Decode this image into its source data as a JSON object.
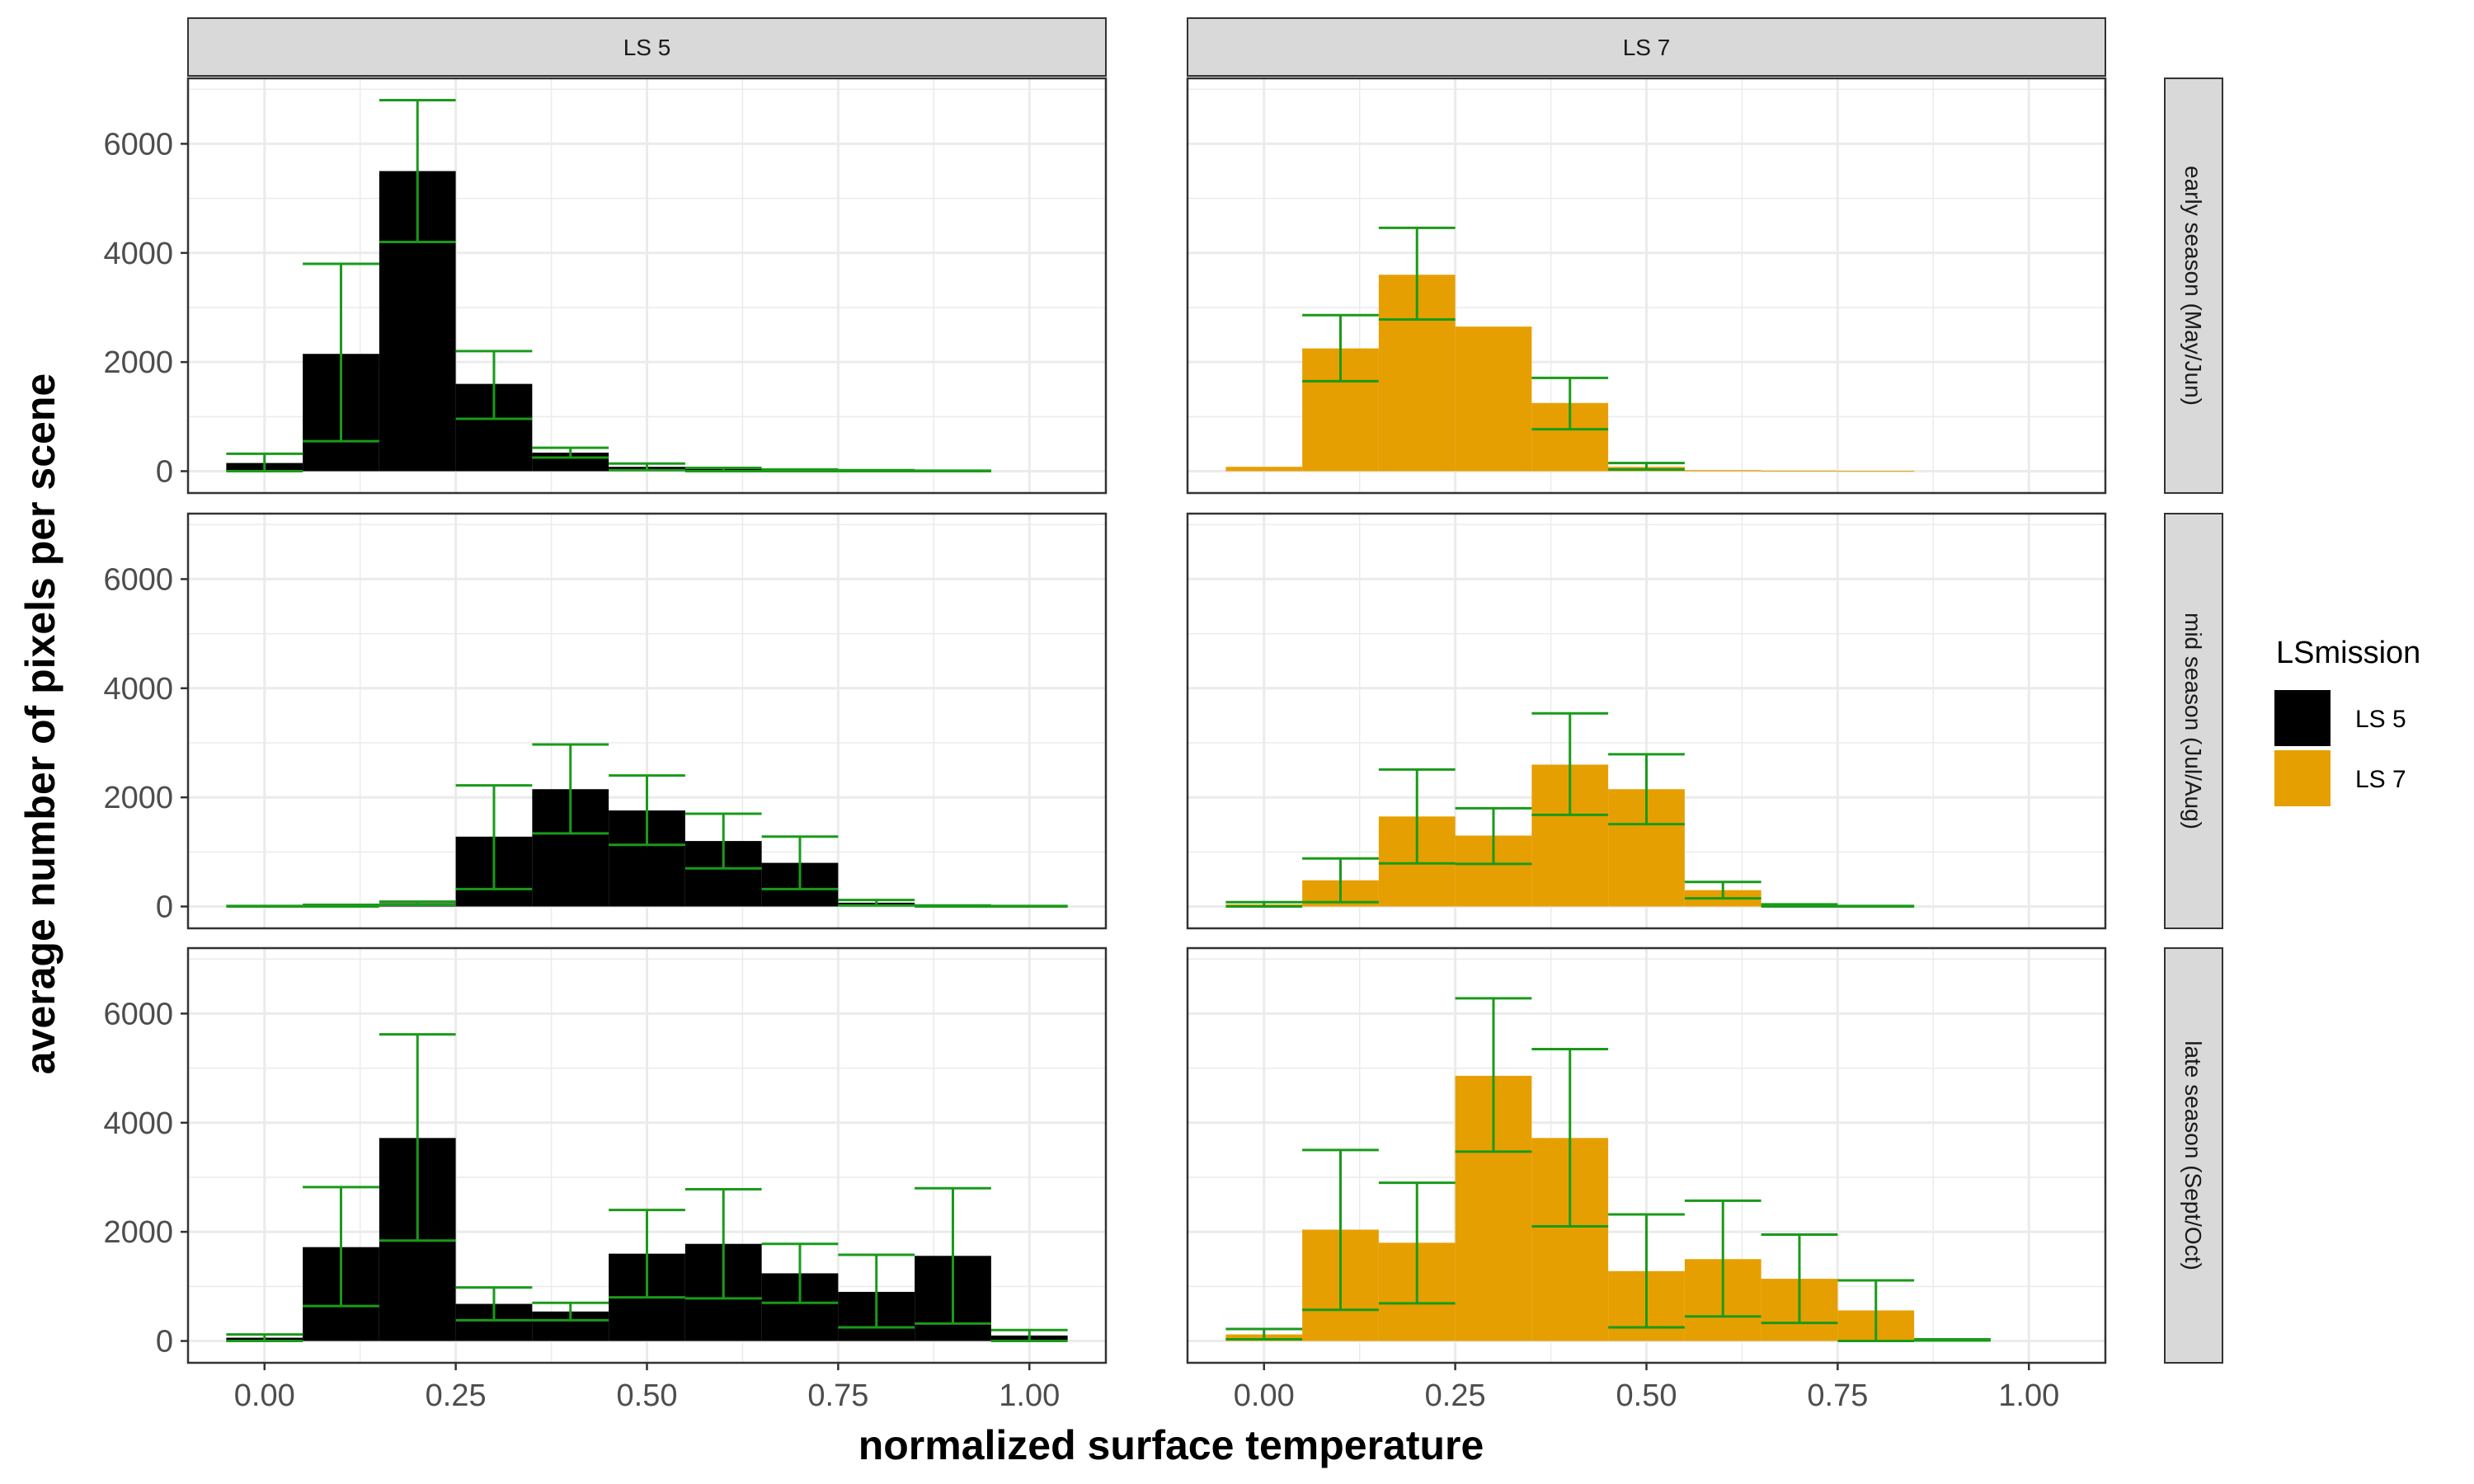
{
  "chart_data": {
    "type": "bar",
    "title": "",
    "xlabel": "normalized surface temperature",
    "ylabel": "average number of pixels per scene",
    "xlim": [
      -0.1,
      1.1
    ],
    "ylim": [
      -400,
      7200
    ],
    "x_ticks": [
      "0.00",
      "0.25",
      "0.50",
      "0.75",
      "1.00"
    ],
    "x_tick_values": [
      0,
      0.25,
      0.5,
      0.75,
      1.0
    ],
    "y_ticks": [
      "0",
      "2000",
      "4000",
      "6000"
    ],
    "y_tick_values": [
      0,
      2000,
      4000,
      6000
    ],
    "bin_width": 0.1,
    "grid": true,
    "legend": {
      "title": "LSmission",
      "position": "right",
      "items": [
        {
          "label": "LS 5",
          "color": "#000000"
        },
        {
          "label": "LS 7",
          "color": "#E69F00"
        }
      ]
    },
    "colors": {
      "LS 5": "#000000",
      "LS 7": "#E69F00",
      "errorbar": "#1a9a1a",
      "strip": "#d9d9d9",
      "grid": "#ebebeb"
    },
    "columns": [
      "LS 5",
      "LS 7"
    ],
    "rows": [
      "early season (May/Jun)",
      "mid season (Jul/Aug)",
      "late season (Sept/Oct)"
    ],
    "x": [
      0.0,
      0.1,
      0.2,
      0.3,
      0.4,
      0.5,
      0.6,
      0.7,
      0.8,
      0.9,
      1.0
    ],
    "panels": [
      {
        "column": "LS 5",
        "row": "early season (May/Jun)",
        "values": [
          150,
          2150,
          5500,
          1600,
          340,
          80,
          40,
          20,
          10,
          5,
          null
        ],
        "error_low": [
          0,
          550,
          4200,
          960,
          250,
          20,
          0,
          0,
          0,
          0,
          null
        ],
        "error_high": [
          320,
          3800,
          6800,
          2200,
          430,
          140,
          60,
          30,
          20,
          10,
          null
        ]
      },
      {
        "column": "LS 7",
        "row": "early season (May/Jun)",
        "values": [
          80,
          2250,
          3600,
          2650,
          1250,
          80,
          20,
          10,
          5,
          null,
          null
        ],
        "error_low": [
          null,
          1650,
          2780,
          null,
          770,
          30,
          null,
          null,
          null,
          null,
          null
        ],
        "error_high": [
          null,
          2860,
          4460,
          null,
          1710,
          150,
          null,
          null,
          null,
          null,
          null
        ]
      },
      {
        "column": "LS 5",
        "row": "mid season (Jul/Aug)",
        "values": [
          5,
          15,
          60,
          1280,
          2150,
          1760,
          1200,
          800,
          70,
          10,
          5
        ],
        "error_low": [
          0,
          0,
          30,
          320,
          1340,
          1130,
          700,
          320,
          20,
          0,
          0
        ],
        "error_high": [
          10,
          30,
          90,
          2220,
          2970,
          2400,
          1700,
          1280,
          120,
          20,
          10
        ],
        "show_bar": [
          false,
          false,
          true,
          true,
          true,
          true,
          true,
          true,
          true,
          false,
          false
        ]
      },
      {
        "column": "LS 7",
        "row": "mid season (Jul/Aug)",
        "values": [
          40,
          480,
          1650,
          1300,
          2600,
          2150,
          300,
          20,
          5,
          null,
          null
        ],
        "error_low": [
          0,
          80,
          790,
          780,
          1680,
          1510,
          150,
          0,
          0,
          null,
          null
        ],
        "error_high": [
          80,
          880,
          2510,
          1800,
          3540,
          2790,
          450,
          40,
          10,
          null,
          null
        ]
      },
      {
        "column": "LS 5",
        "row": "late season (Sept/Oct)",
        "values": [
          60,
          1720,
          3720,
          680,
          540,
          1600,
          1780,
          1240,
          900,
          1560,
          100
        ],
        "error_low": [
          0,
          640,
          1840,
          380,
          380,
          800,
          780,
          700,
          250,
          320,
          0
        ],
        "error_high": [
          120,
          2820,
          5620,
          980,
          700,
          2400,
          2780,
          1780,
          1580,
          2800,
          200
        ]
      },
      {
        "column": "LS 7",
        "row": "late season (Sept/Oct)",
        "values": [
          120,
          2040,
          1800,
          4860,
          3720,
          1280,
          1500,
          1140,
          560,
          20,
          null
        ],
        "error_low": [
          30,
          570,
          690,
          3470,
          2100,
          250,
          450,
          330,
          0,
          10,
          null
        ],
        "error_high": [
          220,
          3500,
          2900,
          6280,
          5350,
          2320,
          2570,
          1950,
          1110,
          30,
          null
        ]
      }
    ]
  }
}
